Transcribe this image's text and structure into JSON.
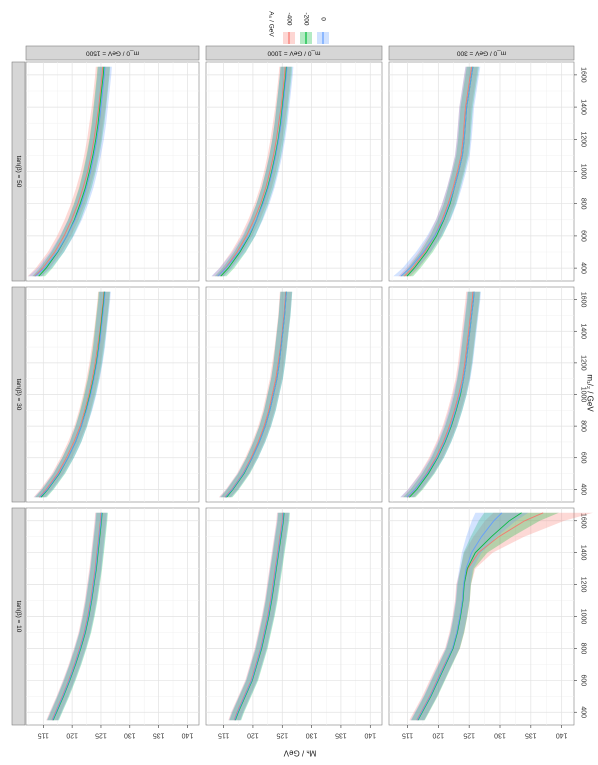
{
  "chart_data": {
    "type": "line",
    "description_layout": "faceted ribbon plot, rotated 90 degrees",
    "xlabel": "m_{1/2} / GeV",
    "ylabel": "M_h / GeV",
    "xlim": [
      320,
      1680
    ],
    "ylim": [
      112,
      142
    ],
    "x_ticks": [
      400,
      600,
      800,
      1000,
      1200,
      1400,
      1600
    ],
    "y_ticks": [
      115,
      120,
      125,
      130,
      135,
      140
    ],
    "grid": true,
    "legend": {
      "title": "A_0 / GeV",
      "position": "top",
      "entries": [
        {
          "label": "-400",
          "color": "#f8766d"
        },
        {
          "label": "-200",
          "color": "#00ba38"
        },
        {
          "label": "0",
          "color": "#619cff"
        }
      ]
    },
    "row_facets": [
      "m_0 / GeV = 300",
      "m_0 / GeV = 1000",
      "m_0 / GeV = 1500"
    ],
    "col_facets": [
      "tan(β) = 50",
      "tan(β) = 30",
      "tan(β) = 10"
    ],
    "x": [
      350,
      400,
      500,
      600,
      700,
      800,
      900,
      1000,
      1100,
      1200,
      1300,
      1400,
      1500,
      1600,
      1650
    ],
    "panels": [
      {
        "row": 0,
        "col": 0,
        "series": [
          {
            "name": "-400",
            "values": [
              114.5,
              115.8,
              117.8,
              119.4,
              120.6,
              121.6,
              122.4,
              123.1,
              123.7,
              124.0,
              124.2,
              124.4,
              124.8,
              125.2,
              125.4
            ],
            "band": 1.0
          },
          {
            "name": "-200",
            "values": [
              114.9,
              116.1,
              118.1,
              119.7,
              120.9,
              121.9,
              122.6,
              123.3,
              123.9,
              124.2,
              124.4,
              124.6,
              125.0,
              125.4,
              125.6
            ],
            "band": 1.0
          },
          {
            "name": "0",
            "values": [
              113.9,
              115.4,
              117.6,
              119.4,
              120.8,
              121.8,
              122.6,
              123.3,
              123.9,
              124.2,
              124.4,
              124.6,
              125.0,
              125.4,
              125.6
            ],
            "band": 1.2
          }
        ]
      },
      {
        "row": 0,
        "col": 1,
        "series": [
          {
            "name": "-400",
            "values": [
              115.0,
              116.2,
              118.1,
              119.6,
              120.8,
              121.8,
              122.6,
              123.3,
              123.9,
              124.3,
              124.6,
              124.9,
              125.2,
              125.5,
              125.6
            ],
            "band": 1.1
          },
          {
            "name": "-200",
            "values": [
              115.3,
              116.5,
              118.4,
              119.9,
              121.1,
              122.1,
              122.9,
              123.6,
              124.1,
              124.5,
              124.8,
              125.1,
              125.4,
              125.7,
              125.8
            ],
            "band": 1.0
          },
          {
            "name": "0",
            "values": [
              114.9,
              116.2,
              118.2,
              119.8,
              121.0,
              122.0,
              122.8,
              123.5,
              124.1,
              124.5,
              124.8,
              125.1,
              125.4,
              125.7,
              125.8
            ],
            "band": 1.1
          }
        ]
      },
      {
        "row": 0,
        "col": 2,
        "series": [
          {
            "name": "-400",
            "values": [
              116.5,
              117.2,
              118.6,
              119.8,
              121.0,
              122.3,
              123.0,
              123.5,
              123.9,
              124.1,
              124.8,
              126.5,
              129.8,
              134.0,
              137.0
            ],
            "band": 1.2
          },
          {
            "name": "-200",
            "values": [
              116.7,
              117.4,
              118.8,
              120.0,
              121.2,
              122.4,
              123.1,
              123.6,
              124.0,
              124.2,
              124.7,
              126.0,
              128.6,
              131.5,
              133.5
            ],
            "band": 1.1
          },
          {
            "name": "0",
            "values": [
              116.6,
              117.3,
              118.7,
              119.9,
              121.1,
              122.3,
              123.0,
              123.5,
              123.9,
              124.1,
              124.5,
              125.4,
              127.0,
              129.0,
              130.3
            ],
            "band": 1.1
          }
        ]
      },
      {
        "row": 1,
        "col": 0,
        "series": [
          {
            "name": "-400",
            "values": [
              114.0,
              115.3,
              117.3,
              118.9,
              120.2,
              121.3,
              122.2,
              122.9,
              123.5,
              124.0,
              124.4,
              124.8,
              125.1,
              125.4,
              125.5
            ],
            "band": 1.0
          },
          {
            "name": "-200",
            "values": [
              114.5,
              115.8,
              117.8,
              119.4,
              120.6,
              121.6,
              122.5,
              123.2,
              123.8,
              124.3,
              124.7,
              125.0,
              125.3,
              125.6,
              125.7
            ],
            "band": 1.0
          },
          {
            "name": "0",
            "values": [
              114.0,
              115.4,
              117.6,
              119.3,
              120.6,
              121.7,
              122.6,
              123.3,
              123.9,
              124.4,
              124.8,
              125.1,
              125.4,
              125.7,
              125.8
            ],
            "band": 1.1
          }
        ]
      },
      {
        "row": 1,
        "col": 1,
        "series": [
          {
            "name": "-400",
            "values": [
              115.2,
              116.4,
              118.3,
              119.7,
              120.9,
              121.9,
              122.7,
              123.3,
              123.9,
              124.3,
              124.7,
              125.0,
              125.3,
              125.5,
              125.6
            ],
            "band": 1.0
          },
          {
            "name": "-200",
            "values": [
              115.5,
              116.6,
              118.5,
              119.9,
              121.1,
              122.1,
              122.9,
              123.5,
              124.1,
              124.5,
              124.8,
              125.1,
              125.4,
              125.6,
              125.7
            ],
            "band": 1.0
          },
          {
            "name": "0",
            "values": [
              115.3,
              116.5,
              118.4,
              119.9,
              121.1,
              122.1,
              122.9,
              123.5,
              124.1,
              124.5,
              124.8,
              125.1,
              125.4,
              125.6,
              125.7
            ],
            "band": 1.0
          }
        ]
      },
      {
        "row": 1,
        "col": 2,
        "series": [
          {
            "name": "-400",
            "values": [
              116.8,
              117.3,
              118.5,
              119.7,
              120.5,
              121.3,
              121.9,
              122.5,
              123.0,
              123.4,
              123.8,
              124.2,
              124.6,
              125.0,
              125.1
            ],
            "band": 1.0
          },
          {
            "name": "-200",
            "values": [
              117.0,
              117.5,
              118.7,
              119.9,
              120.7,
              121.5,
              122.1,
              122.7,
              123.2,
              123.6,
              124.0,
              124.4,
              124.8,
              125.2,
              125.3
            ],
            "band": 1.0
          },
          {
            "name": "0",
            "values": [
              116.9,
              117.4,
              118.6,
              119.8,
              120.6,
              121.4,
              122.0,
              122.6,
              123.1,
              123.5,
              123.9,
              124.3,
              124.7,
              125.1,
              125.2
            ],
            "band": 1.0
          }
        ]
      },
      {
        "row": 2,
        "col": 0,
        "series": [
          {
            "name": "-400",
            "values": [
              113.5,
              114.9,
              117.0,
              118.6,
              119.9,
              121.0,
              121.9,
              122.7,
              123.3,
              123.8,
              124.2,
              124.6,
              124.9,
              125.2,
              125.3
            ],
            "band": 1.2
          },
          {
            "name": "-200",
            "values": [
              114.2,
              115.5,
              117.5,
              119.1,
              120.4,
              121.4,
              122.3,
              123.0,
              123.6,
              124.1,
              124.5,
              124.8,
              125.1,
              125.4,
              125.5
            ],
            "band": 1.1
          },
          {
            "name": "0",
            "values": [
              113.6,
              115.2,
              117.4,
              119.1,
              120.5,
              121.6,
              122.5,
              123.2,
              123.8,
              124.3,
              124.7,
              125.0,
              125.3,
              125.6,
              125.7
            ],
            "band": 1.2
          }
        ]
      },
      {
        "row": 2,
        "col": 1,
        "series": [
          {
            "name": "-400",
            "values": [
              114.3,
              115.5,
              117.5,
              119.0,
              120.3,
              121.4,
              122.2,
              122.9,
              123.5,
              124.0,
              124.4,
              124.8,
              125.1,
              125.4,
              125.5
            ],
            "band": 1.0
          },
          {
            "name": "-200",
            "values": [
              114.6,
              115.8,
              117.8,
              119.3,
              120.6,
              121.6,
              122.4,
              123.1,
              123.7,
              124.2,
              124.6,
              124.9,
              125.2,
              125.5,
              125.6
            ],
            "band": 1.0
          },
          {
            "name": "0",
            "values": [
              114.4,
              115.7,
              117.7,
              119.3,
              120.6,
              121.6,
              122.5,
              123.2,
              123.8,
              124.3,
              124.7,
              125.0,
              125.3,
              125.6,
              125.7
            ],
            "band": 1.0
          }
        ]
      },
      {
        "row": 2,
        "col": 2,
        "series": [
          {
            "name": "-400",
            "values": [
              116.5,
              117.1,
              118.3,
              119.4,
              120.4,
              121.3,
              122.1,
              122.7,
              123.2,
              123.6,
              124.0,
              124.3,
              124.6,
              124.9,
              125.0
            ],
            "band": 1.0
          },
          {
            "name": "-200",
            "values": [
              116.7,
              117.3,
              118.5,
              119.6,
              120.6,
              121.5,
              122.3,
              122.9,
              123.4,
              123.8,
              124.2,
              124.5,
              124.8,
              125.1,
              125.2
            ],
            "band": 1.0
          },
          {
            "name": "0",
            "values": [
              116.6,
              117.2,
              118.4,
              119.5,
              120.5,
              121.4,
              122.2,
              122.8,
              123.3,
              123.7,
              124.1,
              124.4,
              124.7,
              125.0,
              125.1
            ],
            "band": 1.0
          }
        ]
      }
    ]
  }
}
